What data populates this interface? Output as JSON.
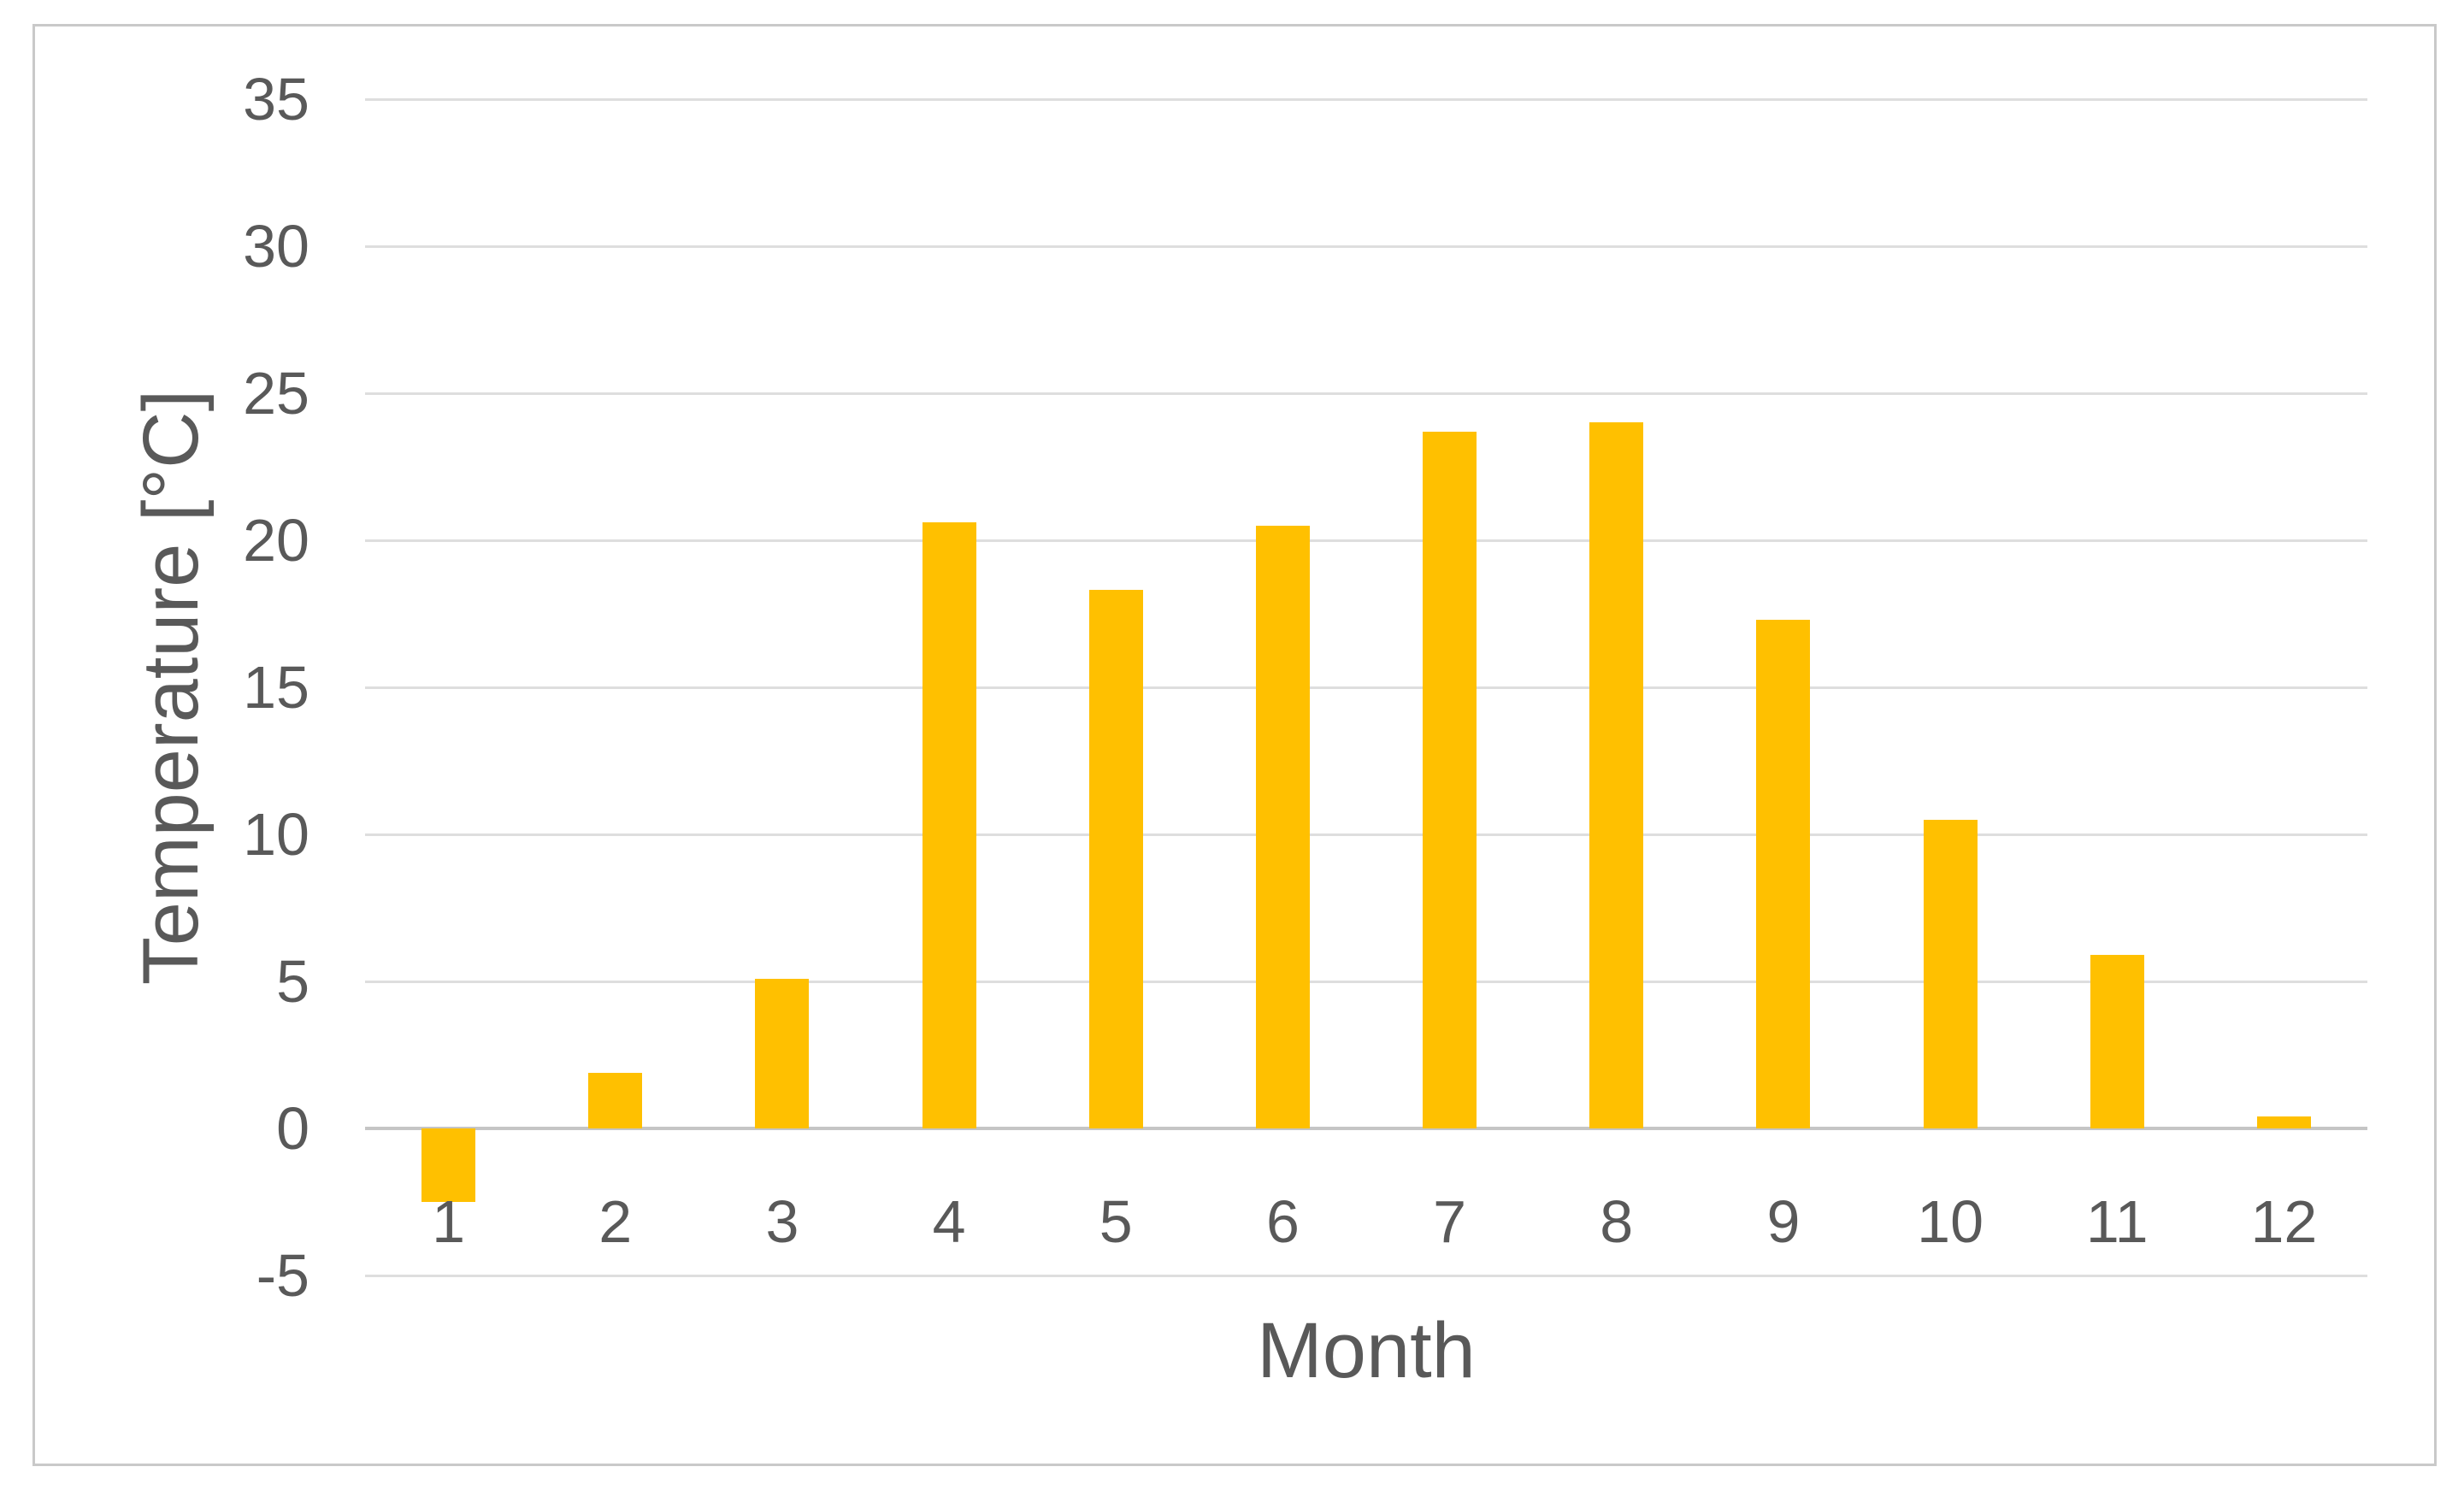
{
  "chart_data": {
    "type": "bar",
    "title": "",
    "xlabel": "Month",
    "ylabel": "Temperature [°C]",
    "categories": [
      "1",
      "2",
      "3",
      "4",
      "5",
      "6",
      "7",
      "8",
      "9",
      "10",
      "11",
      "12"
    ],
    "values": [
      -2.5,
      1.9,
      5.1,
      20.6,
      18.3,
      20.5,
      23.7,
      24.0,
      17.3,
      10.5,
      5.9,
      0.4
    ],
    "series_name": "Temperature",
    "ylim": [
      -5,
      35
    ],
    "yticks": [
      35,
      30,
      25,
      20,
      15,
      10,
      5,
      0,
      -5
    ],
    "grid": true,
    "legend": false,
    "bar_color": "#FFC000"
  },
  "colors": {
    "bar_fill": "#FFC000",
    "gridline": "#DEDEDE",
    "axis_line": "#C5C5C5",
    "text": "#595959",
    "frame_border": "#C9C9C9",
    "background": "#FFFFFF"
  }
}
